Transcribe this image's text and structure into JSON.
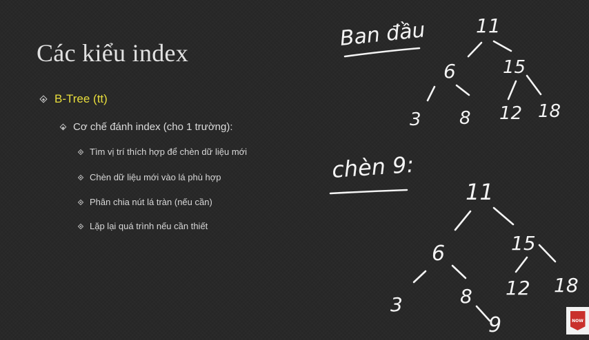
{
  "slide": {
    "title": "Các kiểu index",
    "bullets": [
      "B-Tree (tt)",
      "Cơ chế đánh index (cho 1 trường):",
      "Tìm vị trí thích hợp để chèn dữ liệu mới",
      "Chèn dữ liệu mới vào lá phù hợp",
      "Phân chia nút lá tràn (nếu cần)",
      "Lặp lại quá trình nếu cần thiết"
    ]
  },
  "annotations": {
    "label_initial": "Ban đầu",
    "label_insert": "chèn 9:",
    "tree_initial": [
      "11",
      "6",
      "15",
      "3",
      "8",
      "12",
      "18"
    ],
    "tree_after": [
      "11",
      "6",
      "15",
      "3",
      "8",
      "12",
      "18",
      "9"
    ]
  },
  "logo": {
    "text": "NOW"
  },
  "colors": {
    "background": "#262626",
    "highlight": "#e8dd3c",
    "ink": "#f4f4f4"
  }
}
